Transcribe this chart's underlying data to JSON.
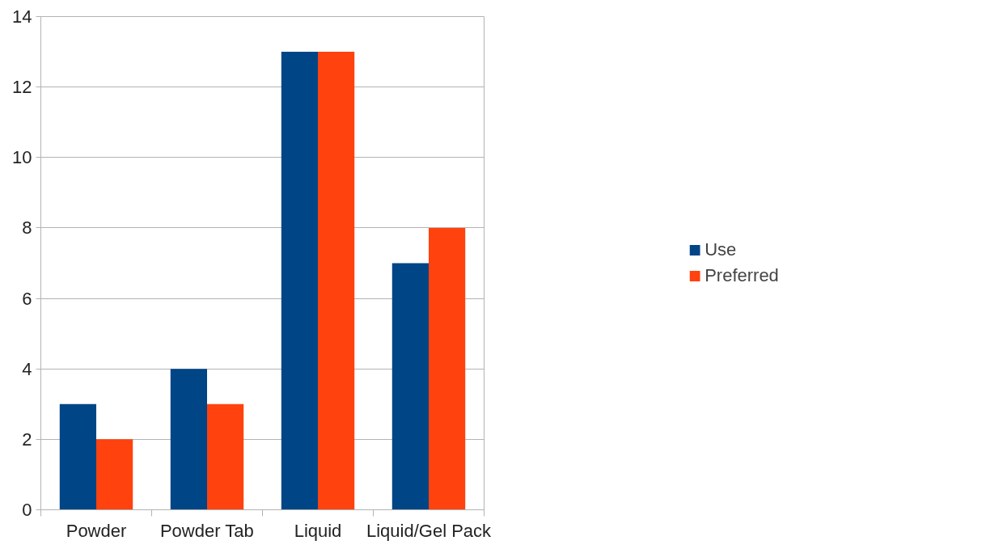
{
  "chart_data": {
    "type": "bar",
    "categories": [
      "Powder",
      "Powder Tab",
      "Liquid",
      "Liquid/Gel Pack"
    ],
    "series": [
      {
        "name": "Use",
        "color": "#004586",
        "values": [
          3,
          4,
          13,
          7
        ]
      },
      {
        "name": "Preferred",
        "color": "#ff420e",
        "values": [
          2,
          3,
          13,
          8
        ]
      }
    ],
    "ylim": [
      0,
      14
    ],
    "yticks": [
      0,
      2,
      4,
      6,
      8,
      10,
      12,
      14
    ],
    "grid": "y",
    "legend": "right"
  }
}
